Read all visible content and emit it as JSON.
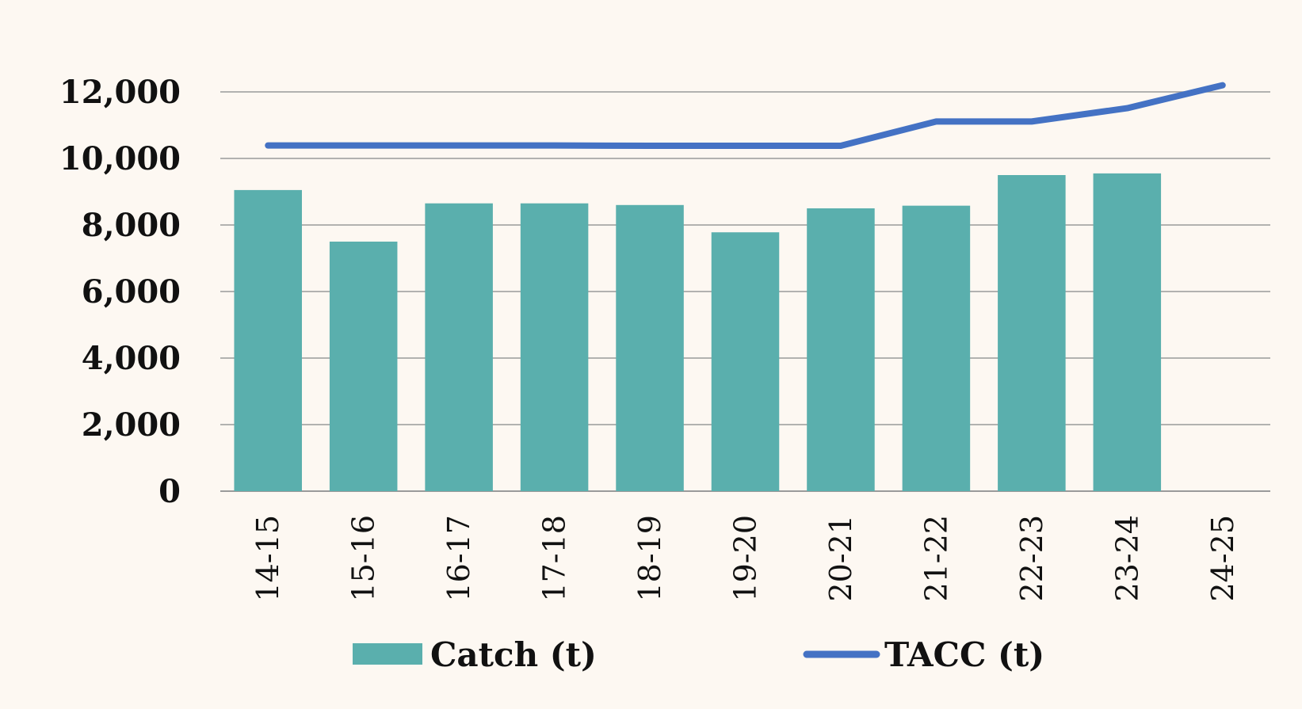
{
  "colors": {
    "background": "#fdf8f2",
    "catch_bar": "#5aafad",
    "tacc_line": "#4472c4",
    "gridline": "#9a9a9a"
  },
  "chart_data": {
    "type": "bar",
    "categories": [
      "14-15",
      "15-16",
      "16-17",
      "17-18",
      "18-19",
      "19-20",
      "20-21",
      "21-22",
      "22-23",
      "23-24",
      "24-25"
    ],
    "series": [
      {
        "name": "Catch (t)",
        "type": "bar",
        "values": [
          9050,
          7500,
          8650,
          8650,
          8600,
          7780,
          8500,
          8580,
          9500,
          9550,
          null
        ]
      },
      {
        "name": "TACC (t)",
        "type": "line",
        "values": [
          10390,
          10390,
          10390,
          10390,
          10380,
          10380,
          10380,
          11110,
          11110,
          11510,
          12200
        ]
      }
    ],
    "y_ticks": [
      "0",
      "2,000",
      "4,000",
      "6,000",
      "8,000",
      "10,000",
      "12,000"
    ],
    "ylim": [
      0,
      12000
    ],
    "grid": true,
    "legend_position": "bottom"
  },
  "legend": {
    "catch_label": "Catch (t)",
    "tacc_label": "TACC (t)"
  }
}
